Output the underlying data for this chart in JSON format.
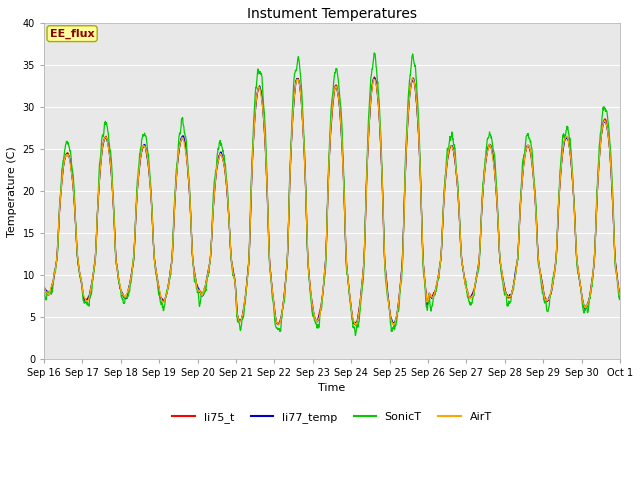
{
  "title": "Instument Temperatures",
  "ylabel": "Temperature (C)",
  "xlabel": "Time",
  "ylim": [
    0,
    40
  ],
  "annotation_text": "EE_flux",
  "annotation_color": "#8B0000",
  "annotation_bg": "#FFFF99",
  "plot_bg_color": "#E8E8E8",
  "fig_bg": "#FFFFFF",
  "grid_color": "#FFFFFF",
  "line_colors": [
    "#FF0000",
    "#0000CC",
    "#00CC00",
    "#FFA500"
  ],
  "line_labels": [
    "li75_t",
    "li77_temp",
    "SonicT",
    "AirT"
  ],
  "xtick_labels": [
    "Sep 16",
    "Sep 17",
    "Sep 18",
    "Sep 19",
    "Sep 20",
    "Sep 21",
    "Sep 22",
    "Sep 23",
    "Sep 24",
    "Sep 25",
    "Sep 26",
    "Sep 27",
    "Sep 28",
    "Sep 29",
    "Sep 30",
    "Oct 1"
  ],
  "ytick_values": [
    0,
    5,
    10,
    15,
    20,
    25,
    30,
    35,
    40
  ],
  "n_days": 15,
  "n_per_day": 144,
  "seed": 7
}
